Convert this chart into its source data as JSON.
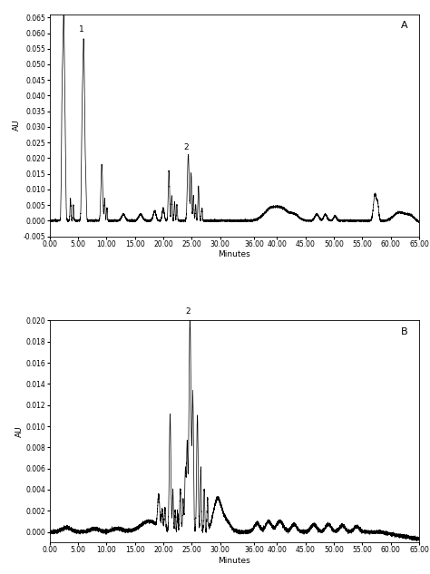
{
  "panel_A_label": "A",
  "panel_B_label": "B",
  "xlabel": "Minutes",
  "ylabel": "AU",
  "xlim": [
    0.0,
    65.0
  ],
  "A_ylim": [
    -0.005,
    0.066
  ],
  "B_ylim": [
    -0.001,
    0.02
  ],
  "line_color": "#000000",
  "background_color": "#ffffff",
  "tick_labelsize": 5.5,
  "axis_labelsize": 6.5,
  "panel_labelsize": 8,
  "annotation_fontsize": 6.5
}
